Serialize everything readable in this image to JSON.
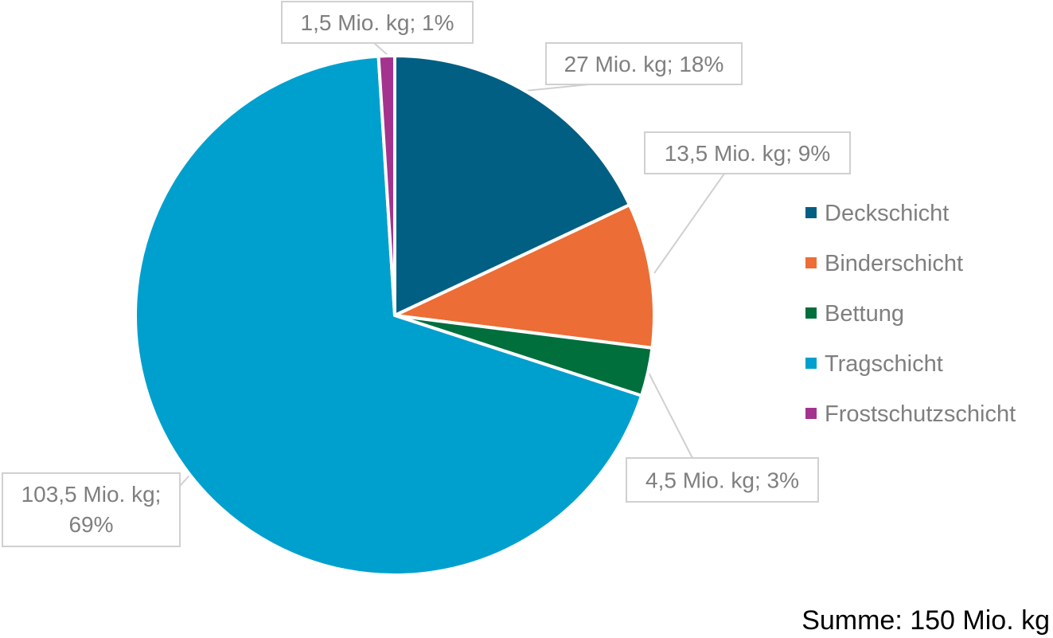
{
  "chart_data": {
    "type": "pie",
    "series": [
      {
        "name": "",
        "categories": [
          "Deckschicht",
          "Binderschicht",
          "Bettung",
          "Tragschicht",
          "Frostschutzschicht"
        ],
        "values": [
          27,
          13.5,
          4.5,
          103.5,
          1.5
        ],
        "percent_labels": [
          "18%",
          "9%",
          "3%",
          "69%",
          "1%"
        ],
        "value_labels": [
          "27 Mio. kg; 18%",
          "13,5 Mio. kg; 9%",
          "4,5 Mio. kg; 3%",
          "103,5 Mio. kg; 69%",
          "1,5 Mio. kg; 1%"
        ],
        "colors": [
          "#005f83",
          "#ec6d35",
          "#006f3c",
          "#00a0ce",
          "#a4338f"
        ]
      }
    ],
    "legend": {
      "placement": "right",
      "entries": [
        "Deckschicht",
        "Binderschicht",
        "Bettung",
        "Tragschicht",
        "Frostschutzschicht"
      ]
    },
    "annotation": "Summe: 150 Mio. kg"
  }
}
